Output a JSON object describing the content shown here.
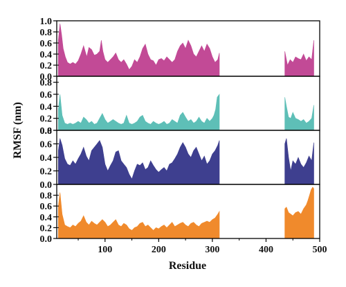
{
  "chart_data": {
    "type": "area",
    "layout": "4 stacked panels sharing x-axis",
    "xlabel": "Residue",
    "ylabel": "RMSF (nm)",
    "xlim": [
      10,
      500
    ],
    "x_ticks": [
      100,
      200,
      300,
      400,
      500
    ],
    "grid": false,
    "legend": "none",
    "panels": [
      {
        "color": "#c24a96",
        "ylim": [
          0,
          1.0
        ],
        "y_ticks": [
          "0.0",
          "0.2",
          "0.4",
          "0.6",
          "0.8",
          "1.0"
        ],
        "segments": [
          {
            "x": [
              13,
              16,
              19,
              22,
              26,
              30,
              35,
              40,
              45,
              50,
              55,
              60,
              63,
              66,
              70,
              75,
              80,
              85,
              90,
              93,
              96,
              100,
              105,
              110,
              115,
              120,
              125,
              130,
              135,
              140,
              145,
              150,
              155,
              160,
              165,
              170,
              175,
              180,
              185,
              190,
              195,
              200,
              205,
              210,
              215,
              220,
              225,
              230,
              235,
              240,
              245,
              250,
              255,
              260,
              265,
              270,
              275,
              280,
              285,
              290,
              295,
              300,
              305,
              310,
              313
            ],
            "y": [
              0.65,
              0.95,
              0.75,
              0.5,
              0.35,
              0.25,
              0.22,
              0.25,
              0.22,
              0.28,
              0.4,
              0.55,
              0.45,
              0.35,
              0.52,
              0.48,
              0.38,
              0.4,
              0.45,
              0.65,
              0.45,
              0.3,
              0.25,
              0.3,
              0.35,
              0.42,
              0.3,
              0.25,
              0.3,
              0.22,
              0.12,
              0.18,
              0.3,
              0.25,
              0.35,
              0.5,
              0.58,
              0.4,
              0.3,
              0.28,
              0.2,
              0.3,
              0.32,
              0.28,
              0.35,
              0.3,
              0.25,
              0.3,
              0.45,
              0.55,
              0.6,
              0.5,
              0.65,
              0.55,
              0.4,
              0.35,
              0.45,
              0.55,
              0.45,
              0.58,
              0.5,
              0.35,
              0.25,
              0.3,
              0.42
            ]
          },
          {
            "x": [
              435,
              440,
              445,
              450,
              455,
              460,
              465,
              470,
              475,
              480,
              485,
              489
            ],
            "y": [
              0.45,
              0.2,
              0.3,
              0.25,
              0.35,
              0.32,
              0.3,
              0.4,
              0.28,
              0.35,
              0.3,
              0.65
            ]
          }
        ]
      },
      {
        "color": "#5ebfb7",
        "ylim": [
          0,
          0.9
        ],
        "y_ticks": [
          "0.0",
          "0.2",
          "0.4",
          "0.6",
          "0.8"
        ],
        "segments": [
          {
            "x": [
              13,
              16,
              20,
              25,
              30,
              35,
              40,
              45,
              50,
              55,
              60,
              65,
              70,
              75,
              80,
              85,
              90,
              95,
              100,
              105,
              110,
              115,
              120,
              125,
              130,
              135,
              140,
              145,
              150,
              155,
              160,
              165,
              170,
              175,
              180,
              185,
              190,
              195,
              200,
              205,
              210,
              215,
              220,
              225,
              230,
              235,
              240,
              245,
              250,
              255,
              260,
              265,
              270,
              275,
              280,
              285,
              290,
              295,
              300,
              303,
              306,
              309,
              313
            ],
            "y": [
              0.35,
              0.6,
              0.25,
              0.12,
              0.1,
              0.12,
              0.1,
              0.12,
              0.15,
              0.12,
              0.22,
              0.18,
              0.12,
              0.15,
              0.1,
              0.12,
              0.2,
              0.28,
              0.18,
              0.12,
              0.15,
              0.18,
              0.15,
              0.12,
              0.1,
              0.12,
              0.25,
              0.12,
              0.1,
              0.12,
              0.15,
              0.22,
              0.25,
              0.15,
              0.12,
              0.1,
              0.15,
              0.12,
              0.1,
              0.12,
              0.15,
              0.1,
              0.12,
              0.18,
              0.15,
              0.12,
              0.25,
              0.3,
              0.22,
              0.15,
              0.18,
              0.12,
              0.15,
              0.22,
              0.15,
              0.12,
              0.2,
              0.15,
              0.2,
              0.25,
              0.35,
              0.55,
              0.6
            ]
          },
          {
            "x": [
              435,
              438,
              442,
              446,
              450,
              455,
              460,
              465,
              470,
              475,
              480,
              485,
              489
            ],
            "y": [
              0.55,
              0.4,
              0.22,
              0.2,
              0.3,
              0.2,
              0.18,
              0.15,
              0.18,
              0.12,
              0.15,
              0.2,
              0.42
            ]
          }
        ]
      },
      {
        "color": "#3e3f8f",
        "ylim": [
          0,
          0.8
        ],
        "y_ticks": [
          "0.0",
          "0.2",
          "0.4",
          "0.6",
          "0.8"
        ],
        "segments": [
          {
            "x": [
              13,
              16,
              20,
              25,
              30,
              35,
              40,
              45,
              50,
              55,
              60,
              65,
              70,
              75,
              80,
              85,
              90,
              95,
              100,
              105,
              110,
              115,
              120,
              125,
              130,
              135,
              140,
              145,
              150,
              155,
              160,
              165,
              170,
              175,
              180,
              185,
              190,
              195,
              200,
              205,
              210,
              215,
              220,
              225,
              230,
              235,
              240,
              245,
              250,
              255,
              260,
              265,
              270,
              275,
              280,
              285,
              290,
              295,
              300,
              305,
              310,
              313
            ],
            "y": [
              0.5,
              0.68,
              0.58,
              0.38,
              0.3,
              0.28,
              0.35,
              0.3,
              0.38,
              0.45,
              0.55,
              0.42,
              0.35,
              0.5,
              0.55,
              0.6,
              0.65,
              0.55,
              0.3,
              0.2,
              0.28,
              0.35,
              0.48,
              0.5,
              0.35,
              0.3,
              0.25,
              0.15,
              0.08,
              0.2,
              0.3,
              0.28,
              0.32,
              0.22,
              0.25,
              0.35,
              0.28,
              0.22,
              0.18,
              0.22,
              0.25,
              0.2,
              0.3,
              0.32,
              0.38,
              0.45,
              0.55,
              0.62,
              0.55,
              0.45,
              0.4,
              0.5,
              0.55,
              0.45,
              0.35,
              0.42,
              0.3,
              0.35,
              0.45,
              0.5,
              0.58,
              0.65
            ]
          },
          {
            "x": [
              435,
              438,
              442,
              446,
              450,
              455,
              460,
              465,
              470,
              475,
              480,
              485,
              489
            ],
            "y": [
              0.6,
              0.68,
              0.4,
              0.2,
              0.35,
              0.3,
              0.4,
              0.3,
              0.25,
              0.32,
              0.42,
              0.35,
              0.62
            ]
          }
        ]
      },
      {
        "color": "#f08a2c",
        "ylim": [
          0,
          1.0
        ],
        "y_ticks": [
          "0.0",
          "0.2",
          "0.4",
          "0.6",
          "0.8"
        ],
        "segments": [
          {
            "x": [
              13,
              16,
              20,
              25,
              30,
              35,
              40,
              45,
              50,
              55,
              60,
              65,
              70,
              75,
              80,
              85,
              90,
              95,
              100,
              105,
              110,
              115,
              120,
              125,
              130,
              135,
              140,
              145,
              150,
              155,
              160,
              165,
              170,
              175,
              180,
              185,
              190,
              195,
              200,
              205,
              210,
              215,
              220,
              225,
              230,
              235,
              240,
              245,
              250,
              255,
              260,
              265,
              270,
              275,
              280,
              285,
              290,
              295,
              300,
              305,
              310,
              313
            ],
            "y": [
              0.6,
              0.85,
              0.45,
              0.25,
              0.22,
              0.2,
              0.25,
              0.22,
              0.28,
              0.32,
              0.42,
              0.3,
              0.25,
              0.32,
              0.28,
              0.25,
              0.3,
              0.35,
              0.3,
              0.22,
              0.25,
              0.3,
              0.35,
              0.25,
              0.22,
              0.28,
              0.25,
              0.18,
              0.15,
              0.2,
              0.22,
              0.28,
              0.3,
              0.22,
              0.25,
              0.2,
              0.15,
              0.2,
              0.18,
              0.22,
              0.25,
              0.2,
              0.25,
              0.3,
              0.22,
              0.25,
              0.28,
              0.3,
              0.25,
              0.22,
              0.28,
              0.3,
              0.25,
              0.22,
              0.28,
              0.3,
              0.32,
              0.3,
              0.35,
              0.38,
              0.45,
              0.5
            ]
          },
          {
            "x": [
              435,
              438,
              442,
              446,
              450,
              455,
              460,
              465,
              470,
              475,
              478,
              481,
              484,
              487,
              489
            ],
            "y": [
              0.55,
              0.58,
              0.48,
              0.45,
              0.42,
              0.48,
              0.5,
              0.45,
              0.55,
              0.62,
              0.7,
              0.8,
              0.9,
              0.95,
              0.92
            ]
          }
        ]
      }
    ]
  }
}
